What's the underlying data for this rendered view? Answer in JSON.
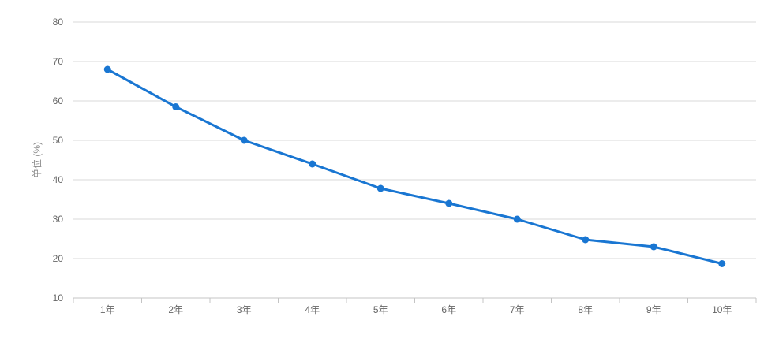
{
  "chart_data": {
    "type": "line",
    "categories": [
      "1年",
      "2年",
      "3年",
      "4年",
      "5年",
      "6年",
      "7年",
      "8年",
      "9年",
      "10年"
    ],
    "values": [
      68,
      58.5,
      50,
      44,
      37.8,
      34,
      30,
      24.8,
      23,
      18.7
    ],
    "title": "",
    "xlabel": "",
    "ylabel": "单位 (%)",
    "ylim": [
      10,
      80
    ],
    "ytick_interval": 10,
    "yticks": [
      10,
      20,
      30,
      40,
      50,
      60,
      70,
      80
    ],
    "grid": true,
    "legend_position": "none",
    "colors": {
      "line": "#1976d2",
      "point": "#1976d2",
      "grid": "#d9d9d9",
      "axis": "#c4c4c4",
      "tick_text": "#666666",
      "axis_title": "#8a8a8a",
      "background": "#ffffff"
    }
  }
}
